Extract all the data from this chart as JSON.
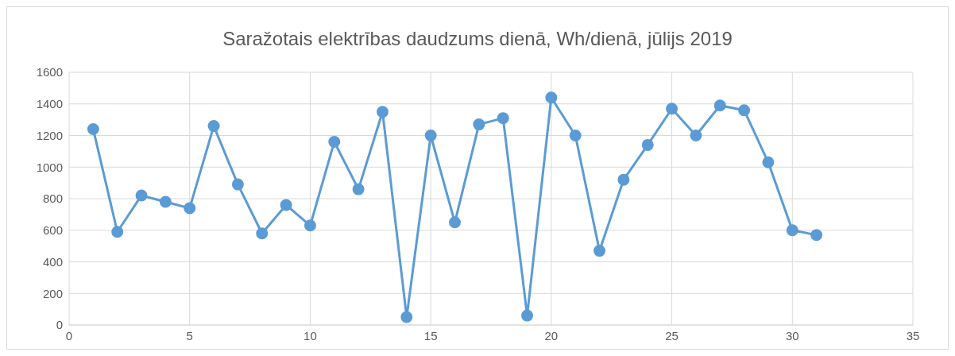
{
  "chart_data": {
    "type": "line",
    "title": "Saražotais elektrības daudzums dienā, Wh/dienā, jūlijs 2019",
    "x": [
      1,
      2,
      3,
      4,
      5,
      6,
      7,
      8,
      9,
      10,
      11,
      12,
      13,
      14,
      15,
      16,
      17,
      18,
      19,
      20,
      21,
      22,
      23,
      24,
      25,
      26,
      27,
      28,
      29,
      30,
      31
    ],
    "series": [
      {
        "color": "#5b9bd5",
        "values": [
          1240,
          590,
          820,
          780,
          740,
          1260,
          890,
          580,
          760,
          630,
          1160,
          860,
          1350,
          50,
          1200,
          650,
          1270,
          1310,
          60,
          1440,
          1200,
          470,
          920,
          1140,
          1370,
          1200,
          1390,
          1360,
          1030,
          600,
          570
        ]
      }
    ],
    "xlim": [
      0,
      35
    ],
    "xticks": [
      0,
      5,
      10,
      15,
      20,
      25,
      30,
      35
    ],
    "ylim": [
      0,
      1600
    ],
    "yticks": [
      0,
      200,
      400,
      600,
      800,
      1000,
      1200,
      1400,
      1600
    ],
    "grid": true,
    "marker": "circle",
    "line_style": "solid",
    "legend": false
  }
}
